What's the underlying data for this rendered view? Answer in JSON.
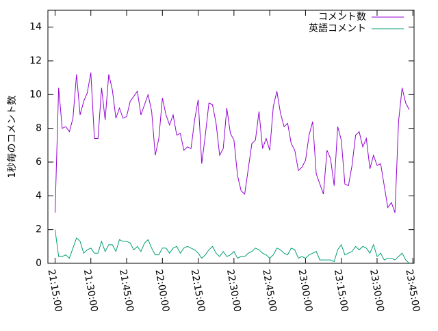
{
  "chart_data": {
    "type": "line",
    "ylabel": "1秒毎のコメント数",
    "x": [
      1275,
      1276.5,
      1278,
      1279.5,
      1281,
      1282.5,
      1284,
      1285.5,
      1287,
      1288.5,
      1290,
      1291.5,
      1293,
      1294.5,
      1296,
      1297.5,
      1299,
      1300.5,
      1302,
      1303.5,
      1305,
      1306.5,
      1308,
      1309.5,
      1311,
      1312.5,
      1314,
      1315.5,
      1317,
      1318.5,
      1320,
      1321.5,
      1323,
      1324.5,
      1326,
      1327.5,
      1329,
      1330.5,
      1332,
      1333.5,
      1335,
      1336.5,
      1338,
      1339.5,
      1341,
      1342.5,
      1344,
      1345.5,
      1347,
      1348.5,
      1350,
      1351.5,
      1353,
      1354.5,
      1356,
      1357.5,
      1359,
      1360.5,
      1362,
      1363.5,
      1365,
      1366.5,
      1368,
      1369.5,
      1371,
      1372.5,
      1374,
      1375.5,
      1377,
      1378.5,
      1380,
      1381.5,
      1383,
      1384.5,
      1386,
      1387.5,
      1389,
      1390.5,
      1392,
      1393.5,
      1395,
      1396.5,
      1398,
      1399.5,
      1401,
      1402.5,
      1404,
      1405.5,
      1407,
      1408.5,
      1410,
      1411.5,
      1413,
      1414.5,
      1416,
      1417.5,
      1419,
      1420.5,
      1422,
      1423.5
    ],
    "series": [
      {
        "name": "コメント数",
        "color": "#9400d3",
        "values": [
          3.0,
          10.4,
          8.0,
          8.1,
          7.8,
          8.6,
          11.2,
          8.8,
          9.6,
          10.1,
          11.3,
          7.4,
          7.4,
          10.4,
          8.5,
          11.2,
          10.3,
          8.6,
          9.2,
          8.6,
          8.7,
          9.6,
          9.9,
          10.2,
          8.8,
          9.4,
          10.0,
          9.0,
          6.4,
          7.4,
          9.8,
          8.8,
          8.2,
          8.8,
          7.6,
          7.7,
          6.7,
          6.9,
          6.8,
          8.5,
          9.7,
          5.9,
          7.6,
          9.5,
          9.4,
          8.3,
          6.4,
          6.8,
          9.2,
          7.7,
          7.3,
          5.2,
          4.3,
          4.1,
          5.6,
          7.1,
          7.3,
          9.0,
          6.8,
          7.4,
          6.7,
          9.3,
          10.2,
          8.9,
          8.1,
          8.3,
          7.1,
          6.7,
          5.5,
          5.7,
          6.1,
          7.6,
          8.4,
          5.3,
          4.7,
          4.1,
          6.7,
          6.2,
          4.6,
          8.1,
          7.3,
          4.7,
          4.6,
          5.8,
          7.6,
          7.8,
          6.9,
          7.4,
          5.6,
          6.4,
          5.8,
          5.9,
          4.6,
          3.3,
          3.6,
          3.0,
          8.4,
          10.4,
          9.5,
          9.1
        ]
      },
      {
        "name": "英語コメント",
        "color": "#009e73",
        "values": [
          2.0,
          0.4,
          0.4,
          0.5,
          0.3,
          0.9,
          1.5,
          1.3,
          0.6,
          0.8,
          0.9,
          0.6,
          0.6,
          1.3,
          0.7,
          1.1,
          1.1,
          0.7,
          1.4,
          1.3,
          1.3,
          1.2,
          0.8,
          1.0,
          0.7,
          1.2,
          1.4,
          0.9,
          0.5,
          0.5,
          0.9,
          0.9,
          0.6,
          0.9,
          1.0,
          0.6,
          0.9,
          1.0,
          0.9,
          0.8,
          0.6,
          0.3,
          0.5,
          0.8,
          1.0,
          0.6,
          0.4,
          0.7,
          0.4,
          0.5,
          0.7,
          0.3,
          0.4,
          0.4,
          0.6,
          0.7,
          0.9,
          0.8,
          0.6,
          0.5,
          0.3,
          0.5,
          0.9,
          0.8,
          0.6,
          0.5,
          0.9,
          0.8,
          0.3,
          0.4,
          0.3,
          0.5,
          0.6,
          0.7,
          0.2,
          0.2,
          0.2,
          0.2,
          0.1,
          0.8,
          1.1,
          0.5,
          0.6,
          0.7,
          1.0,
          0.8,
          1.0,
          0.9,
          0.6,
          1.1,
          0.4,
          0.6,
          0.2,
          0.3,
          0.3,
          0.2,
          0.4,
          0.6,
          0.2,
          0.0
        ]
      }
    ],
    "xlim": [
      1272,
      1425.5
    ],
    "xticks": [
      {
        "value": 1275,
        "label": "21:15:00"
      },
      {
        "value": 1290,
        "label": "21:30:00"
      },
      {
        "value": 1305,
        "label": "21:45:00"
      },
      {
        "value": 1320,
        "label": "22:00:00"
      },
      {
        "value": 1335,
        "label": "22:15:00"
      },
      {
        "value": 1350,
        "label": "22:30:00"
      },
      {
        "value": 1365,
        "label": "22:45:00"
      },
      {
        "value": 1380,
        "label": "23:00:00"
      },
      {
        "value": 1395,
        "label": "23:15:00"
      },
      {
        "value": 1410,
        "label": "23:30:00"
      },
      {
        "value": 1425,
        "label": "23:45:00"
      }
    ],
    "ylim": [
      0,
      15
    ],
    "yticks": [
      0,
      2,
      4,
      6,
      8,
      10,
      12,
      14
    ],
    "legend": "top-right"
  }
}
